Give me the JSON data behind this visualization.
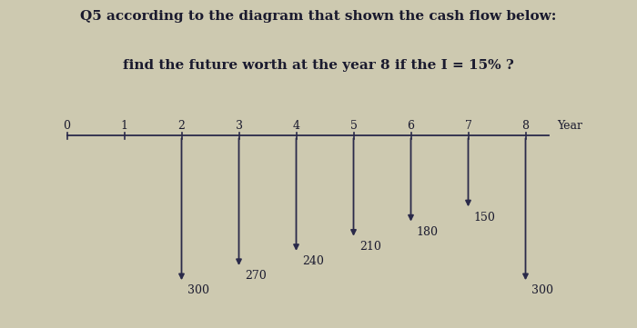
{
  "title_line1": "Q5 according to the diagram that shown the cash flow below:",
  "title_line2": "find the future worth at the year 8 if the I = 15% ?",
  "years": [
    0,
    1,
    2,
    3,
    4,
    5,
    6,
    7,
    8
  ],
  "year_label": "Year",
  "cash_flows": {
    "2": 300,
    "3": 270,
    "4": 240,
    "5": 210,
    "6": 180,
    "7": 150,
    "8": 300
  },
  "arrow_labels": {
    "2": "300",
    "3": "270",
    "4": "240",
    "5": "210",
    "6": "180",
    "7": "150",
    "8": "300"
  },
  "background_color": "#cdc9b0",
  "arrow_color": "#2a2a4a",
  "text_color": "#1a1a2e",
  "title_fontsize": 11,
  "label_fontsize": 9,
  "value_fontsize": 9,
  "fig_width": 7.0,
  "fig_height": 3.61
}
